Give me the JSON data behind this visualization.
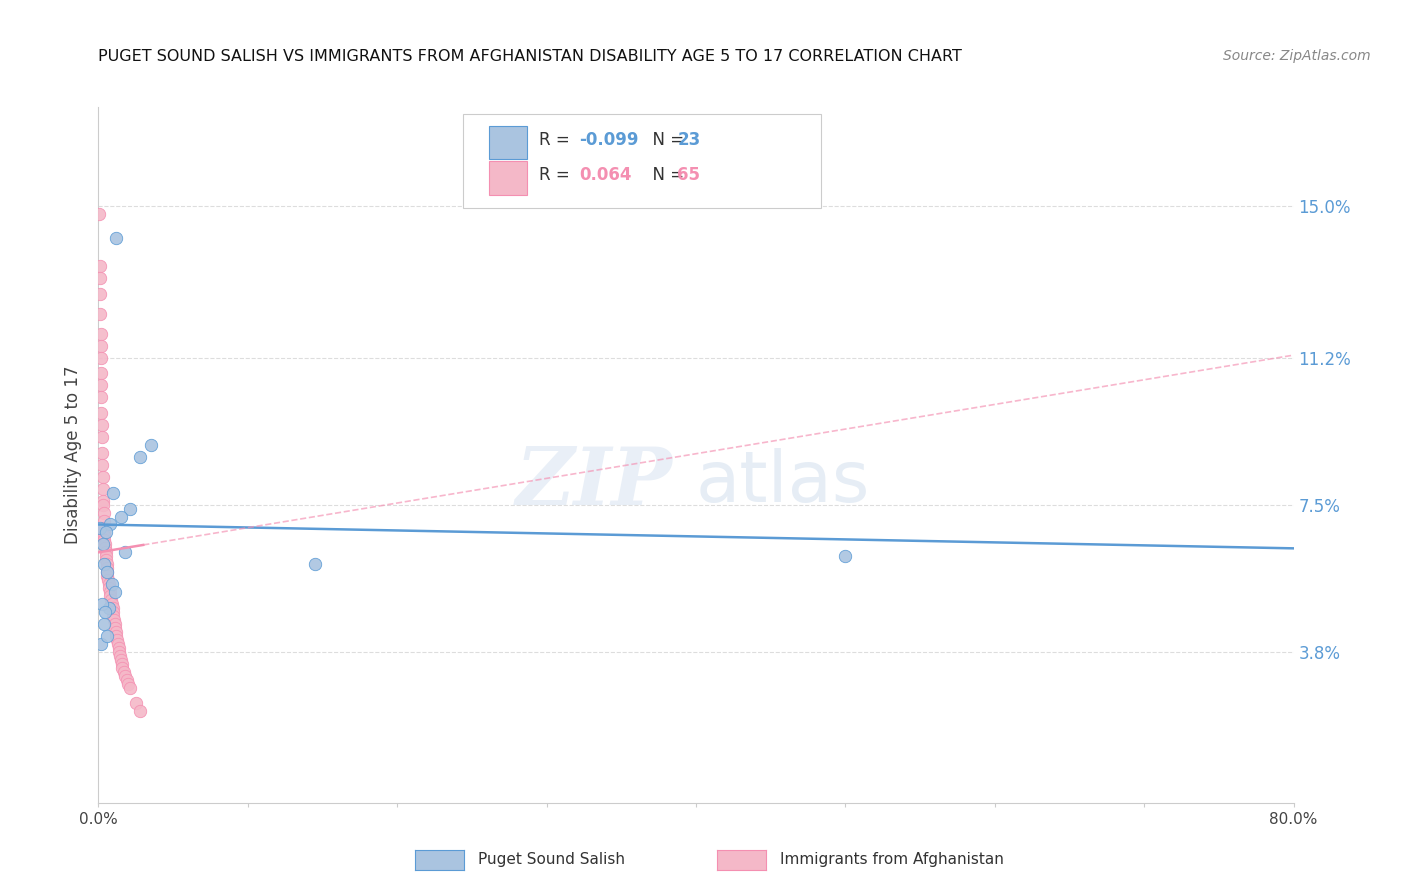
{
  "title": "PUGET SOUND SALISH VS IMMIGRANTS FROM AFGHANISTAN DISABILITY AGE 5 TO 17 CORRELATION CHART",
  "source": "Source: ZipAtlas.com",
  "ylabel": "Disability Age 5 to 17",
  "ytick_values": [
    3.8,
    7.5,
    11.2,
    15.0
  ],
  "xlim": [
    0.0,
    80.0
  ],
  "ylim": [
    0.0,
    17.5
  ],
  "blue_scatter_x": [
    0.1,
    1.2,
    3.5,
    2.8,
    1.0,
    2.1,
    1.5,
    0.8,
    0.5,
    0.3,
    1.8,
    0.4,
    0.6,
    0.9,
    1.1,
    0.7,
    0.2,
    14.5,
    50.0,
    0.35,
    0.55,
    0.25,
    0.45
  ],
  "blue_scatter_y": [
    6.9,
    14.2,
    9.0,
    8.7,
    7.8,
    7.4,
    7.2,
    7.0,
    6.8,
    6.5,
    6.3,
    6.0,
    5.8,
    5.5,
    5.3,
    4.9,
    4.0,
    6.0,
    6.2,
    4.5,
    4.2,
    5.0,
    4.8
  ],
  "pink_scatter_x": [
    0.05,
    0.08,
    0.1,
    0.1,
    0.12,
    0.15,
    0.15,
    0.15,
    0.18,
    0.2,
    0.2,
    0.2,
    0.22,
    0.25,
    0.25,
    0.25,
    0.28,
    0.3,
    0.3,
    0.3,
    0.35,
    0.35,
    0.35,
    0.4,
    0.4,
    0.4,
    0.45,
    0.45,
    0.5,
    0.5,
    0.5,
    0.55,
    0.55,
    0.6,
    0.6,
    0.65,
    0.7,
    0.7,
    0.75,
    0.8,
    0.85,
    0.9,
    0.95,
    1.0,
    1.0,
    1.05,
    1.1,
    1.1,
    1.15,
    1.2,
    1.25,
    1.3,
    1.35,
    1.4,
    1.45,
    1.5,
    1.55,
    1.6,
    1.7,
    1.8,
    1.9,
    2.0,
    2.1,
    2.5,
    2.8
  ],
  "pink_scatter_y": [
    14.8,
    13.5,
    13.2,
    12.8,
    12.3,
    11.8,
    11.5,
    11.2,
    10.8,
    10.5,
    10.2,
    9.8,
    9.5,
    9.2,
    8.8,
    8.5,
    8.2,
    7.9,
    7.6,
    7.5,
    7.3,
    7.1,
    6.9,
    6.8,
    6.7,
    6.6,
    6.5,
    6.4,
    6.3,
    6.2,
    6.1,
    6.0,
    5.9,
    5.8,
    5.7,
    5.6,
    5.5,
    5.4,
    5.3,
    5.2,
    5.1,
    5.0,
    4.9,
    4.8,
    4.7,
    4.6,
    4.5,
    4.4,
    4.3,
    4.2,
    4.1,
    4.0,
    3.9,
    3.8,
    3.7,
    3.6,
    3.5,
    3.4,
    3.3,
    3.2,
    3.1,
    3.0,
    2.9,
    2.5,
    2.3
  ],
  "blue_line_intercept": 7.0,
  "blue_line_slope": -0.0075,
  "pink_line_intercept": 6.3,
  "pink_line_slope": 0.062,
  "pink_solid_end_x": 3.0,
  "grid_color": "#dddddd",
  "blue_color": "#5b9bd5",
  "pink_color": "#f48fb1",
  "blue_scatter_color": "#aac4e0",
  "pink_scatter_color": "#f4b8c8",
  "background_color": "#ffffff",
  "legend_R1": "-0.099",
  "legend_N1": "23",
  "legend_R2": "0.064",
  "legend_N2": "65",
  "bottom_label1": "Puget Sound Salish",
  "bottom_label2": "Immigrants from Afghanistan"
}
